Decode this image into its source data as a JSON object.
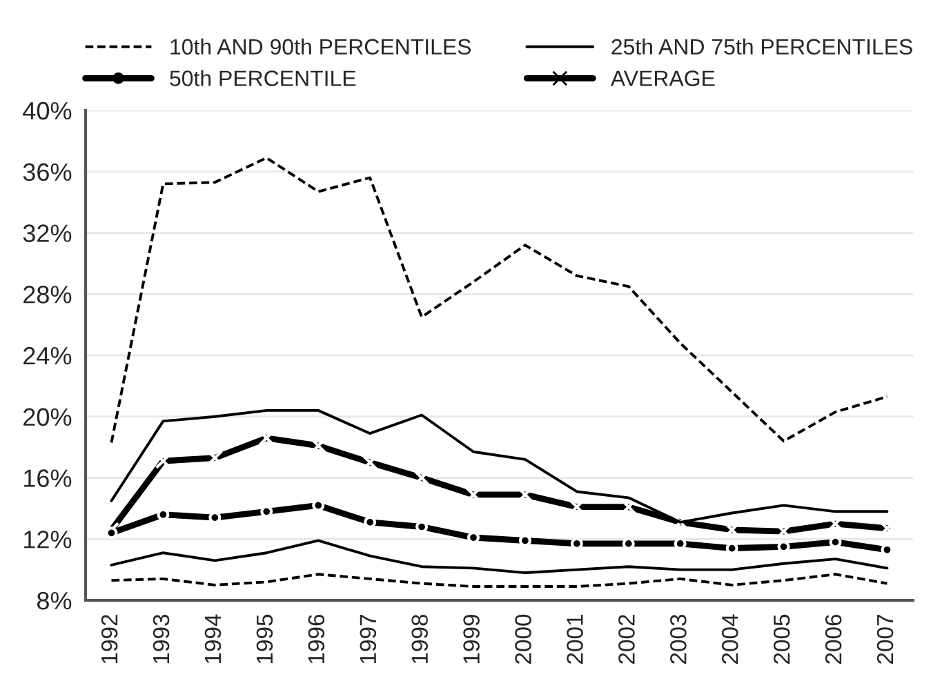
{
  "chart_data": {
    "type": "line",
    "categories": [
      "1992",
      "1993",
      "1994",
      "1995",
      "1996",
      "1997",
      "1998",
      "1999",
      "2000",
      "2001",
      "2002",
      "2003",
      "2004",
      "2005",
      "2006",
      "2007"
    ],
    "series": [
      {
        "name": "10th AND 90th PERCENTILES",
        "color": "#000000",
        "line_style": "dashed",
        "marker": "none",
        "values": [
          9.3,
          9.4,
          9.0,
          9.2,
          9.7,
          9.4,
          9.1,
          8.9,
          8.9,
          8.9,
          9.1,
          9.4,
          9.0,
          9.3,
          9.7,
          9.1
        ]
      },
      {
        "name": "25th AND 75th PERCENTILES",
        "color": "#000000",
        "line_style": "solid",
        "marker": "none",
        "values": [
          10.3,
          11.1,
          10.6,
          11.1,
          11.9,
          10.9,
          10.2,
          10.1,
          9.8,
          10.0,
          10.2,
          10.0,
          10.0,
          10.4,
          10.7,
          10.1
        ]
      },
      {
        "name": "50th PERCENTILE",
        "color": "#000000",
        "line_style": "solid",
        "marker": "circle",
        "values": [
          12.4,
          13.6,
          13.4,
          13.8,
          14.2,
          13.1,
          12.8,
          12.1,
          11.9,
          11.7,
          11.7,
          11.7,
          11.4,
          11.5,
          11.8,
          11.3
        ]
      },
      {
        "name": "AVERAGE",
        "color": "#000000",
        "line_style": "solid",
        "marker": "cross",
        "values": [
          12.6,
          17.1,
          17.3,
          18.6,
          18.1,
          17.0,
          16.0,
          14.9,
          14.9,
          14.1,
          14.1,
          13.1,
          12.6,
          12.5,
          13.0,
          12.7
        ]
      },
      {
        "color": "#000000",
        "line_style": "solid",
        "marker": "none",
        "values": [
          14.5,
          19.7,
          20.0,
          20.4,
          20.4,
          18.9,
          20.1,
          17.7,
          17.2,
          15.1,
          14.7,
          13.1,
          13.7,
          14.2,
          13.8,
          13.8
        ]
      },
      {
        "color": "#000000",
        "line_style": "dashed",
        "marker": "none",
        "values": [
          18.3,
          35.2,
          35.3,
          36.9,
          34.7,
          35.6,
          26.5,
          28.8,
          31.2,
          29.2,
          28.5,
          24.8,
          21.6,
          18.4,
          20.3,
          21.3
        ]
      }
    ],
    "ylim": [
      8,
      40
    ],
    "yticks": [
      {
        "value": 8,
        "label": "8%"
      },
      {
        "value": 12,
        "label": "12%"
      },
      {
        "value": 16,
        "label": "16%"
      },
      {
        "value": 20,
        "label": "20%"
      },
      {
        "value": 24,
        "label": "24%"
      },
      {
        "value": 28,
        "label": "28%"
      },
      {
        "value": 32,
        "label": "32%"
      },
      {
        "value": 36,
        "label": "36%"
      },
      {
        "value": 40,
        "label": "40%"
      }
    ],
    "grid": "y",
    "legend": "top"
  }
}
